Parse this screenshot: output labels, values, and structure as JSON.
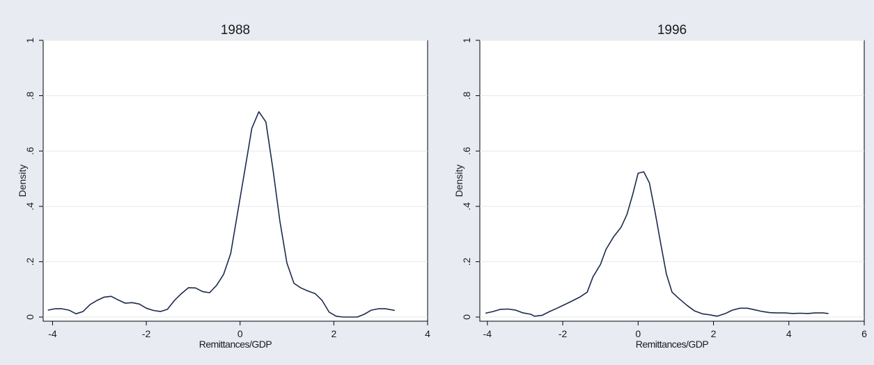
{
  "chart_data": [
    {
      "type": "line",
      "title": "1988",
      "xlabel": "Remittances/GDP",
      "ylabel": "Density",
      "xlim": [
        -4.2,
        4
      ],
      "ylim": [
        -0.015,
        1.0
      ],
      "xticks": [
        -4,
        -2,
        0,
        2,
        4
      ],
      "xtick_labels": [
        "-4",
        "-2",
        "0",
        "2",
        "4"
      ],
      "yticks": [
        0,
        0.2,
        0.4,
        0.6,
        0.8,
        1
      ],
      "ytick_labels": [
        "0",
        ".2",
        ".4",
        ".6",
        ".8",
        "1"
      ],
      "grid": true,
      "series": [
        {
          "color": "#1b2a4a",
          "points": [
            [
              -4.1,
              0.025
            ],
            [
              -3.95,
              0.03
            ],
            [
              -3.8,
              0.03
            ],
            [
              -3.65,
              0.025
            ],
            [
              -3.5,
              0.012
            ],
            [
              -3.35,
              0.02
            ],
            [
              -3.2,
              0.045
            ],
            [
              -3.05,
              0.06
            ],
            [
              -2.9,
              0.072
            ],
            [
              -2.75,
              0.075
            ],
            [
              -2.6,
              0.062
            ],
            [
              -2.45,
              0.05
            ],
            [
              -2.3,
              0.052
            ],
            [
              -2.15,
              0.047
            ],
            [
              -2.0,
              0.032
            ],
            [
              -1.85,
              0.024
            ],
            [
              -1.7,
              0.02
            ],
            [
              -1.55,
              0.028
            ],
            [
              -1.4,
              0.06
            ],
            [
              -1.25,
              0.085
            ],
            [
              -1.1,
              0.106
            ],
            [
              -0.95,
              0.105
            ],
            [
              -0.8,
              0.092
            ],
            [
              -0.65,
              0.088
            ],
            [
              -0.5,
              0.115
            ],
            [
              -0.35,
              0.155
            ],
            [
              -0.2,
              0.23
            ],
            [
              -0.05,
              0.38
            ],
            [
              0.1,
              0.53
            ],
            [
              0.25,
              0.682
            ],
            [
              0.4,
              0.742
            ],
            [
              0.55,
              0.705
            ],
            [
              0.7,
              0.535
            ],
            [
              0.85,
              0.345
            ],
            [
              1.0,
              0.195
            ],
            [
              1.15,
              0.122
            ],
            [
              1.3,
              0.105
            ],
            [
              1.45,
              0.094
            ],
            [
              1.6,
              0.085
            ],
            [
              1.75,
              0.06
            ],
            [
              1.9,
              0.018
            ],
            [
              2.05,
              0.003
            ],
            [
              2.2,
              0.0
            ],
            [
              2.35,
              0.0
            ],
            [
              2.5,
              0.0
            ],
            [
              2.65,
              0.01
            ],
            [
              2.8,
              0.025
            ],
            [
              2.95,
              0.03
            ],
            [
              3.1,
              0.03
            ],
            [
              3.3,
              0.024
            ]
          ]
        }
      ]
    },
    {
      "type": "line",
      "title": "1996",
      "xlabel": "Remittances/GDP",
      "ylabel": "Density",
      "xlim": [
        -4.2,
        6
      ],
      "ylim": [
        -0.015,
        1.0
      ],
      "xticks": [
        -4,
        -2,
        0,
        2,
        4,
        6
      ],
      "xtick_labels": [
        "-4",
        "-2",
        "0",
        "2",
        "4",
        "6"
      ],
      "yticks": [
        0,
        0.2,
        0.4,
        0.6,
        0.8,
        1
      ],
      "ytick_labels": [
        "0",
        ".2",
        ".4",
        ".6",
        ".8",
        "1"
      ],
      "grid": true,
      "series": [
        {
          "color": "#1b2a4a",
          "points": [
            [
              -4.05,
              0.014
            ],
            [
              -3.85,
              0.02
            ],
            [
              -3.65,
              0.028
            ],
            [
              -3.45,
              0.029
            ],
            [
              -3.25,
              0.025
            ],
            [
              -3.05,
              0.015
            ],
            [
              -2.85,
              0.01
            ],
            [
              -2.75,
              0.003
            ],
            [
              -2.55,
              0.006
            ],
            [
              -2.35,
              0.02
            ],
            [
              -2.15,
              0.032
            ],
            [
              -1.95,
              0.045
            ],
            [
              -1.75,
              0.058
            ],
            [
              -1.55,
              0.072
            ],
            [
              -1.35,
              0.09
            ],
            [
              -1.2,
              0.145
            ],
            [
              -1.0,
              0.19
            ],
            [
              -0.85,
              0.245
            ],
            [
              -0.65,
              0.29
            ],
            [
              -0.45,
              0.325
            ],
            [
              -0.3,
              0.37
            ],
            [
              -0.15,
              0.44
            ],
            [
              0.0,
              0.52
            ],
            [
              0.15,
              0.525
            ],
            [
              0.3,
              0.485
            ],
            [
              0.45,
              0.38
            ],
            [
              0.6,
              0.265
            ],
            [
              0.75,
              0.155
            ],
            [
              0.9,
              0.09
            ],
            [
              1.1,
              0.065
            ],
            [
              1.3,
              0.042
            ],
            [
              1.5,
              0.022
            ],
            [
              1.7,
              0.012
            ],
            [
              1.9,
              0.008
            ],
            [
              2.1,
              0.003
            ],
            [
              2.3,
              0.012
            ],
            [
              2.5,
              0.025
            ],
            [
              2.7,
              0.032
            ],
            [
              2.9,
              0.032
            ],
            [
              3.1,
              0.026
            ],
            [
              3.3,
              0.02
            ],
            [
              3.5,
              0.016
            ],
            [
              3.7,
              0.015
            ],
            [
              3.9,
              0.015
            ],
            [
              4.1,
              0.013
            ],
            [
              4.3,
              0.014
            ],
            [
              4.5,
              0.013
            ],
            [
              4.7,
              0.015
            ],
            [
              4.9,
              0.015
            ],
            [
              5.05,
              0.013
            ]
          ]
        }
      ]
    }
  ]
}
